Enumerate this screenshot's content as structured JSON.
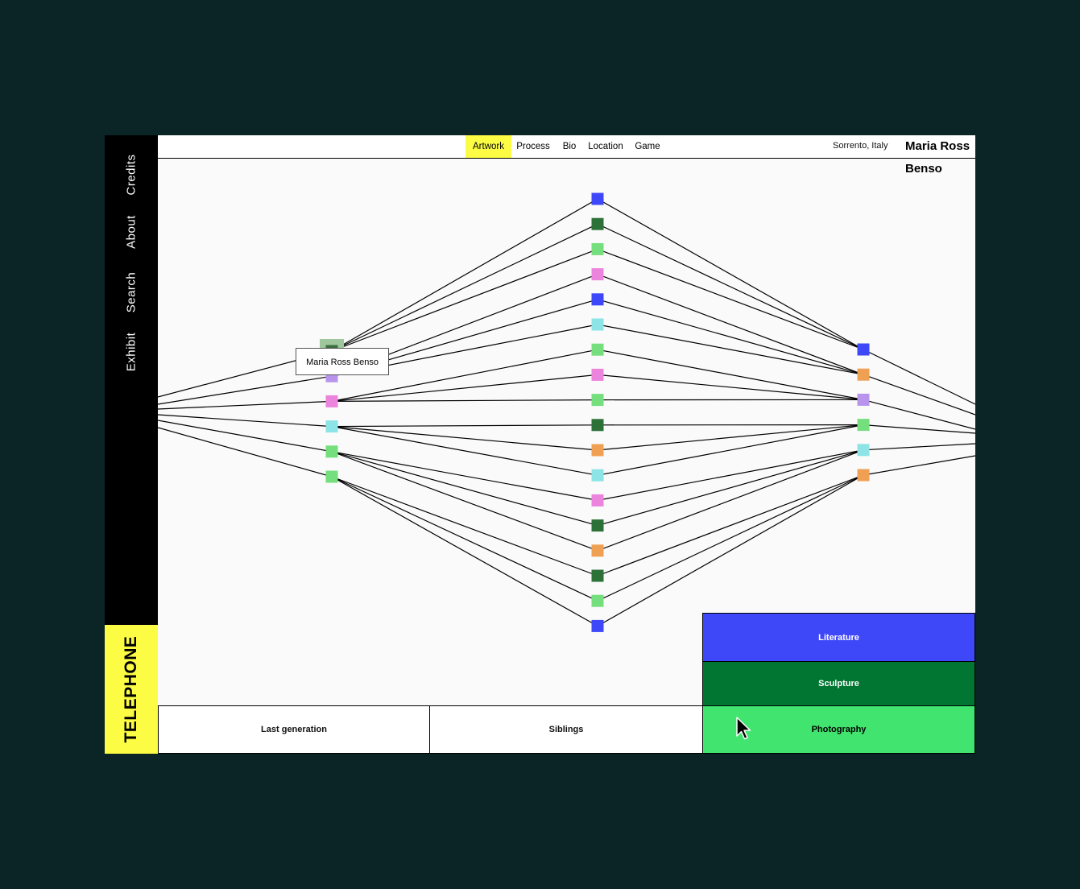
{
  "sidebar": {
    "items": [
      {
        "id": "credits",
        "label": "Credits"
      },
      {
        "id": "about",
        "label": "About"
      },
      {
        "id": "search",
        "label": "Search"
      },
      {
        "id": "exhibit",
        "label": "Exhibit"
      }
    ],
    "brand": "TELEPHONE"
  },
  "header": {
    "tabs": [
      {
        "id": "artwork",
        "label": "Artwork",
        "active": true
      },
      {
        "id": "process",
        "label": "Process"
      },
      {
        "id": "bio",
        "label": "Bio"
      },
      {
        "id": "location",
        "label": "Location"
      },
      {
        "id": "game",
        "label": "Game"
      }
    ],
    "location": "Sorrento, Italy",
    "artist": "Maria Ross Benso"
  },
  "graph": {
    "tooltip": "Maria Ross Benso",
    "left_column": [
      "#94c594",
      "#b894ec",
      "#ec84dd",
      "#8ce4e6",
      "#74df7c",
      "#74df7c"
    ],
    "center_column": [
      "#3f48f8",
      "#2c7138",
      "#74df7c",
      "#ec84dd",
      "#3f48f8",
      "#8ce4e6",
      "#74df7c",
      "#ec84dd",
      "#74df7c",
      "#2c7138",
      "#f0a052",
      "#8ce4e6",
      "#ec84dd",
      "#2c7138",
      "#f0a052",
      "#2c7138",
      "#74df7c",
      "#3f48f8"
    ],
    "right_column": [
      "#3f48f8",
      "#f0a052",
      "#b894ec",
      "#74df7c",
      "#8ce4e6",
      "#f0a052"
    ],
    "highlighted_node": "left-0"
  },
  "bottom": {
    "last_generation": "Last generation",
    "siblings": "Siblings"
  },
  "categories": [
    {
      "id": "literature",
      "label": "Literature",
      "color": "#3f48f8",
      "text_color": "#ffffff"
    },
    {
      "id": "sculpture",
      "label": "Sculpture",
      "color": "#017633",
      "text_color": "#ffffff"
    },
    {
      "id": "photography",
      "label": "Photography",
      "color": "#40e46e",
      "text_color": "#000000",
      "selected": true
    }
  ]
}
